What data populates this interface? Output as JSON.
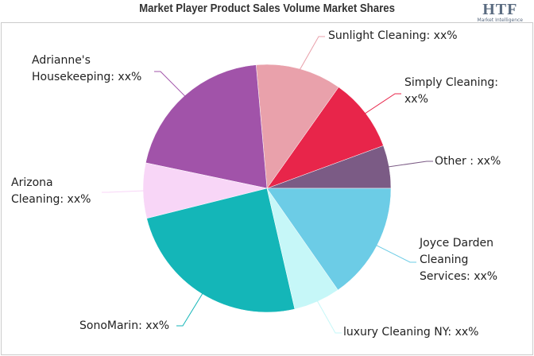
{
  "chart_data": {
    "type": "pie",
    "title": "Market Player Product Sales Volume Market Shares",
    "logo": {
      "mark": "HTF",
      "caption": "Market Intelligence"
    },
    "categories": [
      "Other : xx%",
      "Simply Cleaning: xx%",
      "Sunlight Cleaning: xx%",
      "Adrianne's Housekeeping: xx%",
      "Arizona Cleaning: xx%",
      "SonoMarin: xx%",
      "luxury Cleaning NY: xx%",
      "Joyce Darden Cleaning Services: xx%"
    ],
    "values": [
      5.6,
      9.6,
      11.2,
      20.3,
      7.2,
      24.7,
      6.1,
      15.3
    ],
    "colors": [
      "#7b5b85",
      "#e8254a",
      "#e9a1ab",
      "#a153a9",
      "#f8d6f7",
      "#14b6b8",
      "#c6f7f8",
      "#6ccce6"
    ]
  }
}
